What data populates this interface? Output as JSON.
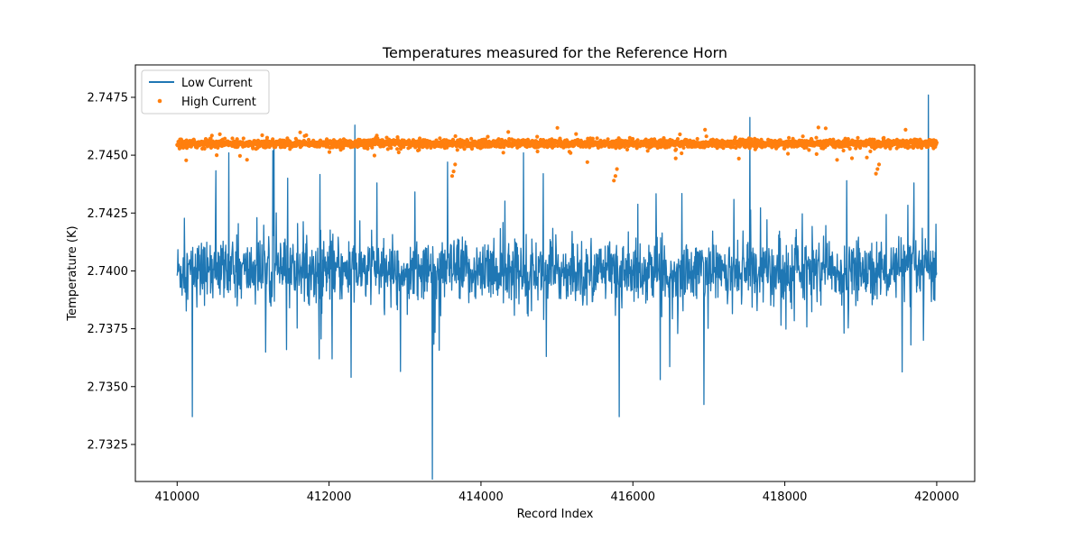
{
  "chart_data": {
    "type": "line",
    "title": "Temperatures measured for the Reference Horn",
    "xlabel": "Record Index",
    "ylabel": "Temperature (K)",
    "xlim": [
      409450,
      420500
    ],
    "ylim": [
      2.7309,
      2.7489
    ],
    "x_ticks": [
      410000,
      412000,
      414000,
      416000,
      418000,
      420000
    ],
    "x_tick_labels": [
      "410000",
      "412000",
      "414000",
      "416000",
      "418000",
      "420000"
    ],
    "y_ticks": [
      2.7325,
      2.735,
      2.7375,
      2.74,
      2.7425,
      2.745,
      2.7475
    ],
    "y_tick_labels": [
      "2.7325",
      "2.7350",
      "2.7375",
      "2.7400",
      "2.7425",
      "2.7450",
      "2.7475"
    ],
    "grid": false,
    "legend": {
      "position": "top-left",
      "entries": [
        {
          "name": "Low Current",
          "marker": "line"
        },
        {
          "name": "High Current",
          "marker": "dot"
        }
      ]
    },
    "series": [
      {
        "name": "Low Current",
        "kind": "line",
        "color": "#1f77b4",
        "x_range": [
          410000,
          420000
        ],
        "baseline": 2.74,
        "band": [
          2.7388,
          2.7412
        ],
        "spikes": [
          {
            "x": 410200,
            "y": 2.7337
          },
          {
            "x": 410680,
            "y": 2.7451
          },
          {
            "x": 411050,
            "y": 2.7423
          },
          {
            "x": 411260,
            "y": 2.7452
          },
          {
            "x": 411440,
            "y": 2.7366
          },
          {
            "x": 411870,
            "y": 2.7362
          },
          {
            "x": 412040,
            "y": 2.7362
          },
          {
            "x": 412290,
            "y": 2.7354
          },
          {
            "x": 412340,
            "y": 2.7463
          },
          {
            "x": 412630,
            "y": 2.7438
          },
          {
            "x": 413360,
            "y": 2.731
          },
          {
            "x": 413560,
            "y": 2.7447
          },
          {
            "x": 414560,
            "y": 2.7451
          },
          {
            "x": 414820,
            "y": 2.7442
          },
          {
            "x": 414860,
            "y": 2.7363
          },
          {
            "x": 415820,
            "y": 2.7337
          },
          {
            "x": 419660,
            "y": 2.7368
          },
          {
            "x": 419700,
            "y": 2.7438
          },
          {
            "x": 419890,
            "y": 2.7476
          }
        ]
      },
      {
        "name": "High Current",
        "kind": "scatter",
        "color": "#ff7f0e",
        "x_range": [
          410000,
          420000
        ],
        "baseline": 2.7455,
        "band": [
          2.7453,
          2.7457
        ],
        "outliers": [
          {
            "x": 410520,
            "y": 2.745
          },
          {
            "x": 410920,
            "y": 2.7448
          },
          {
            "x": 413620,
            "y": 2.7441
          },
          {
            "x": 413640,
            "y": 2.7443
          },
          {
            "x": 413660,
            "y": 2.7446
          },
          {
            "x": 415400,
            "y": 2.7447
          },
          {
            "x": 415750,
            "y": 2.7439
          },
          {
            "x": 415770,
            "y": 2.7441
          },
          {
            "x": 415790,
            "y": 2.7444
          },
          {
            "x": 419200,
            "y": 2.7442
          },
          {
            "x": 419220,
            "y": 2.7444
          },
          {
            "x": 419240,
            "y": 2.7446
          },
          {
            "x": 419080,
            "y": 2.7449
          },
          {
            "x": 414360,
            "y": 2.746
          },
          {
            "x": 416950,
            "y": 2.7461
          },
          {
            "x": 419590,
            "y": 2.7461
          },
          {
            "x": 416620,
            "y": 2.7459
          }
        ]
      }
    ]
  }
}
